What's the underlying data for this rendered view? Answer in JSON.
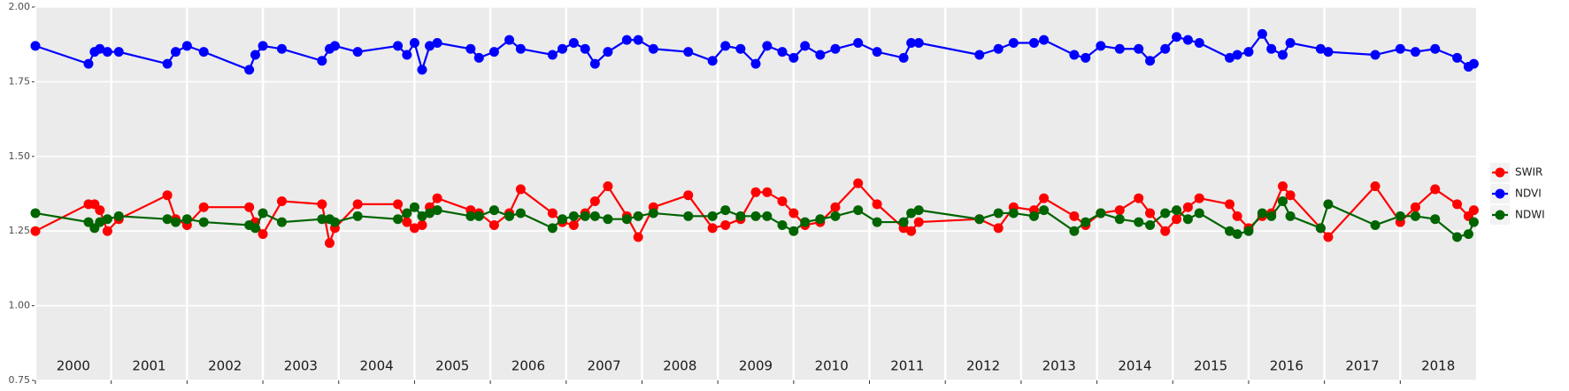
{
  "chart_data": {
    "type": "line",
    "x": [
      2000.0,
      2000.7,
      2000.78,
      2000.85,
      2000.95,
      2001.1,
      2001.74,
      2001.85,
      2002.0,
      2002.22,
      2002.82,
      2002.9,
      2003.0,
      2003.25,
      2003.78,
      2003.88,
      2003.95,
      2004.25,
      2004.78,
      2004.9,
      2005.0,
      2005.1,
      2005.2,
      2005.3,
      2005.74,
      2005.85,
      2006.05,
      2006.25,
      2006.4,
      2006.82,
      2006.95,
      2007.1,
      2007.25,
      2007.38,
      2007.55,
      2007.8,
      2007.95,
      2008.15,
      2008.61,
      2008.93,
      2009.1,
      2009.3,
      2009.5,
      2009.65,
      2009.85,
      2010.0,
      2010.15,
      2010.35,
      2010.55,
      2010.85,
      2011.1,
      2011.45,
      2011.55,
      2011.65,
      2012.45,
      2012.7,
      2012.9,
      2013.17,
      2013.3,
      2013.7,
      2013.85,
      2014.05,
      2014.3,
      2014.55,
      2014.7,
      2014.9,
      2015.05,
      2015.2,
      2015.35,
      2015.75,
      2015.85,
      2016.0,
      2016.18,
      2016.3,
      2016.45,
      2016.55,
      2016.95,
      2017.05,
      2017.67,
      2018.0,
      2018.2,
      2018.46,
      2018.75,
      2018.9,
      2018.97
    ],
    "series": [
      {
        "name": "SWIR",
        "color": "#ff0000",
        "values": [
          1.25,
          1.34,
          1.34,
          1.32,
          1.25,
          1.29,
          1.37,
          1.29,
          1.27,
          1.33,
          1.33,
          1.28,
          1.24,
          1.35,
          1.34,
          1.21,
          1.26,
          1.34,
          1.34,
          1.28,
          1.26,
          1.27,
          1.33,
          1.36,
          1.32,
          1.31,
          1.27,
          1.31,
          1.39,
          1.31,
          1.28,
          1.27,
          1.31,
          1.35,
          1.4,
          1.3,
          1.23,
          1.33,
          1.37,
          1.26,
          1.27,
          1.29,
          1.38,
          1.38,
          1.35,
          1.31,
          1.27,
          1.28,
          1.33,
          1.41,
          1.34,
          1.26,
          1.25,
          1.28,
          1.29,
          1.26,
          1.33,
          1.32,
          1.36,
          1.3,
          1.27,
          1.31,
          1.32,
          1.36,
          1.31,
          1.25,
          1.29,
          1.33,
          1.36,
          1.34,
          1.3,
          1.26,
          1.3,
          1.31,
          1.4,
          1.37,
          1.26,
          1.23,
          1.4,
          1.28,
          1.33,
          1.39,
          1.34,
          1.3,
          1.32
        ]
      },
      {
        "name": "NDVI",
        "color": "#0000ff",
        "values": [
          1.87,
          1.81,
          1.85,
          1.86,
          1.85,
          1.85,
          1.81,
          1.85,
          1.87,
          1.85,
          1.79,
          1.84,
          1.87,
          1.86,
          1.82,
          1.86,
          1.87,
          1.85,
          1.87,
          1.84,
          1.88,
          1.79,
          1.87,
          1.88,
          1.86,
          1.83,
          1.85,
          1.89,
          1.86,
          1.84,
          1.86,
          1.88,
          1.86,
          1.81,
          1.85,
          1.89,
          1.89,
          1.86,
          1.85,
          1.82,
          1.87,
          1.86,
          1.81,
          1.87,
          1.85,
          1.83,
          1.87,
          1.84,
          1.86,
          1.88,
          1.85,
          1.83,
          1.88,
          1.88,
          1.84,
          1.86,
          1.88,
          1.88,
          1.89,
          1.84,
          1.83,
          1.87,
          1.86,
          1.86,
          1.82,
          1.86,
          1.9,
          1.89,
          1.88,
          1.83,
          1.84,
          1.85,
          1.91,
          1.86,
          1.84,
          1.88,
          1.86,
          1.85,
          1.84,
          1.86,
          1.85,
          1.86,
          1.83,
          1.8,
          1.81
        ]
      },
      {
        "name": "NDWI",
        "color": "#006400",
        "values": [
          1.31,
          1.28,
          1.26,
          1.28,
          1.29,
          1.3,
          1.29,
          1.28,
          1.29,
          1.28,
          1.27,
          1.26,
          1.31,
          1.28,
          1.29,
          1.29,
          1.28,
          1.3,
          1.29,
          1.31,
          1.33,
          1.3,
          1.31,
          1.32,
          1.3,
          1.3,
          1.32,
          1.3,
          1.31,
          1.26,
          1.29,
          1.3,
          1.3,
          1.3,
          1.29,
          1.29,
          1.3,
          1.31,
          1.3,
          1.3,
          1.32,
          1.3,
          1.3,
          1.3,
          1.27,
          1.25,
          1.28,
          1.29,
          1.3,
          1.32,
          1.28,
          1.28,
          1.31,
          1.32,
          1.29,
          1.31,
          1.31,
          1.3,
          1.32,
          1.25,
          1.28,
          1.31,
          1.29,
          1.28,
          1.27,
          1.31,
          1.32,
          1.29,
          1.31,
          1.25,
          1.24,
          1.25,
          1.31,
          1.3,
          1.35,
          1.3,
          1.26,
          1.34,
          1.27,
          1.3,
          1.3,
          1.29,
          1.23,
          1.24,
          1.28
        ]
      }
    ],
    "xlim": [
      2000,
      2019
    ],
    "xticks": [
      {
        "value": 2000,
        "label": "2000"
      },
      {
        "value": 2001,
        "label": "2001"
      },
      {
        "value": 2002,
        "label": "2002"
      },
      {
        "value": 2003,
        "label": "2003"
      },
      {
        "value": 2004,
        "label": "2004"
      },
      {
        "value": 2005,
        "label": "2005"
      },
      {
        "value": 2006,
        "label": "2006"
      },
      {
        "value": 2007,
        "label": "2007"
      },
      {
        "value": 2008,
        "label": "2008"
      },
      {
        "value": 2009,
        "label": "2009"
      },
      {
        "value": 2010,
        "label": "2010"
      },
      {
        "value": 2011,
        "label": "2011"
      },
      {
        "value": 2012,
        "label": "2012"
      },
      {
        "value": 2013,
        "label": "2013"
      },
      {
        "value": 2014,
        "label": "2014"
      },
      {
        "value": 2015,
        "label": "2015"
      },
      {
        "value": 2016,
        "label": "2016"
      },
      {
        "value": 2017,
        "label": "2017"
      },
      {
        "value": 2018,
        "label": "2018"
      }
    ],
    "ylim": [
      0.75,
      2.0
    ],
    "yticks": [
      0.75,
      {
        "value": 1,
        "label": "1.00"
      },
      1.25,
      {
        "value": 1.5,
        "label": "1.50"
      },
      1.75,
      {
        "value": 2,
        "label": "2.00"
      }
    ],
    "grid": true,
    "legend_position": "right"
  }
}
